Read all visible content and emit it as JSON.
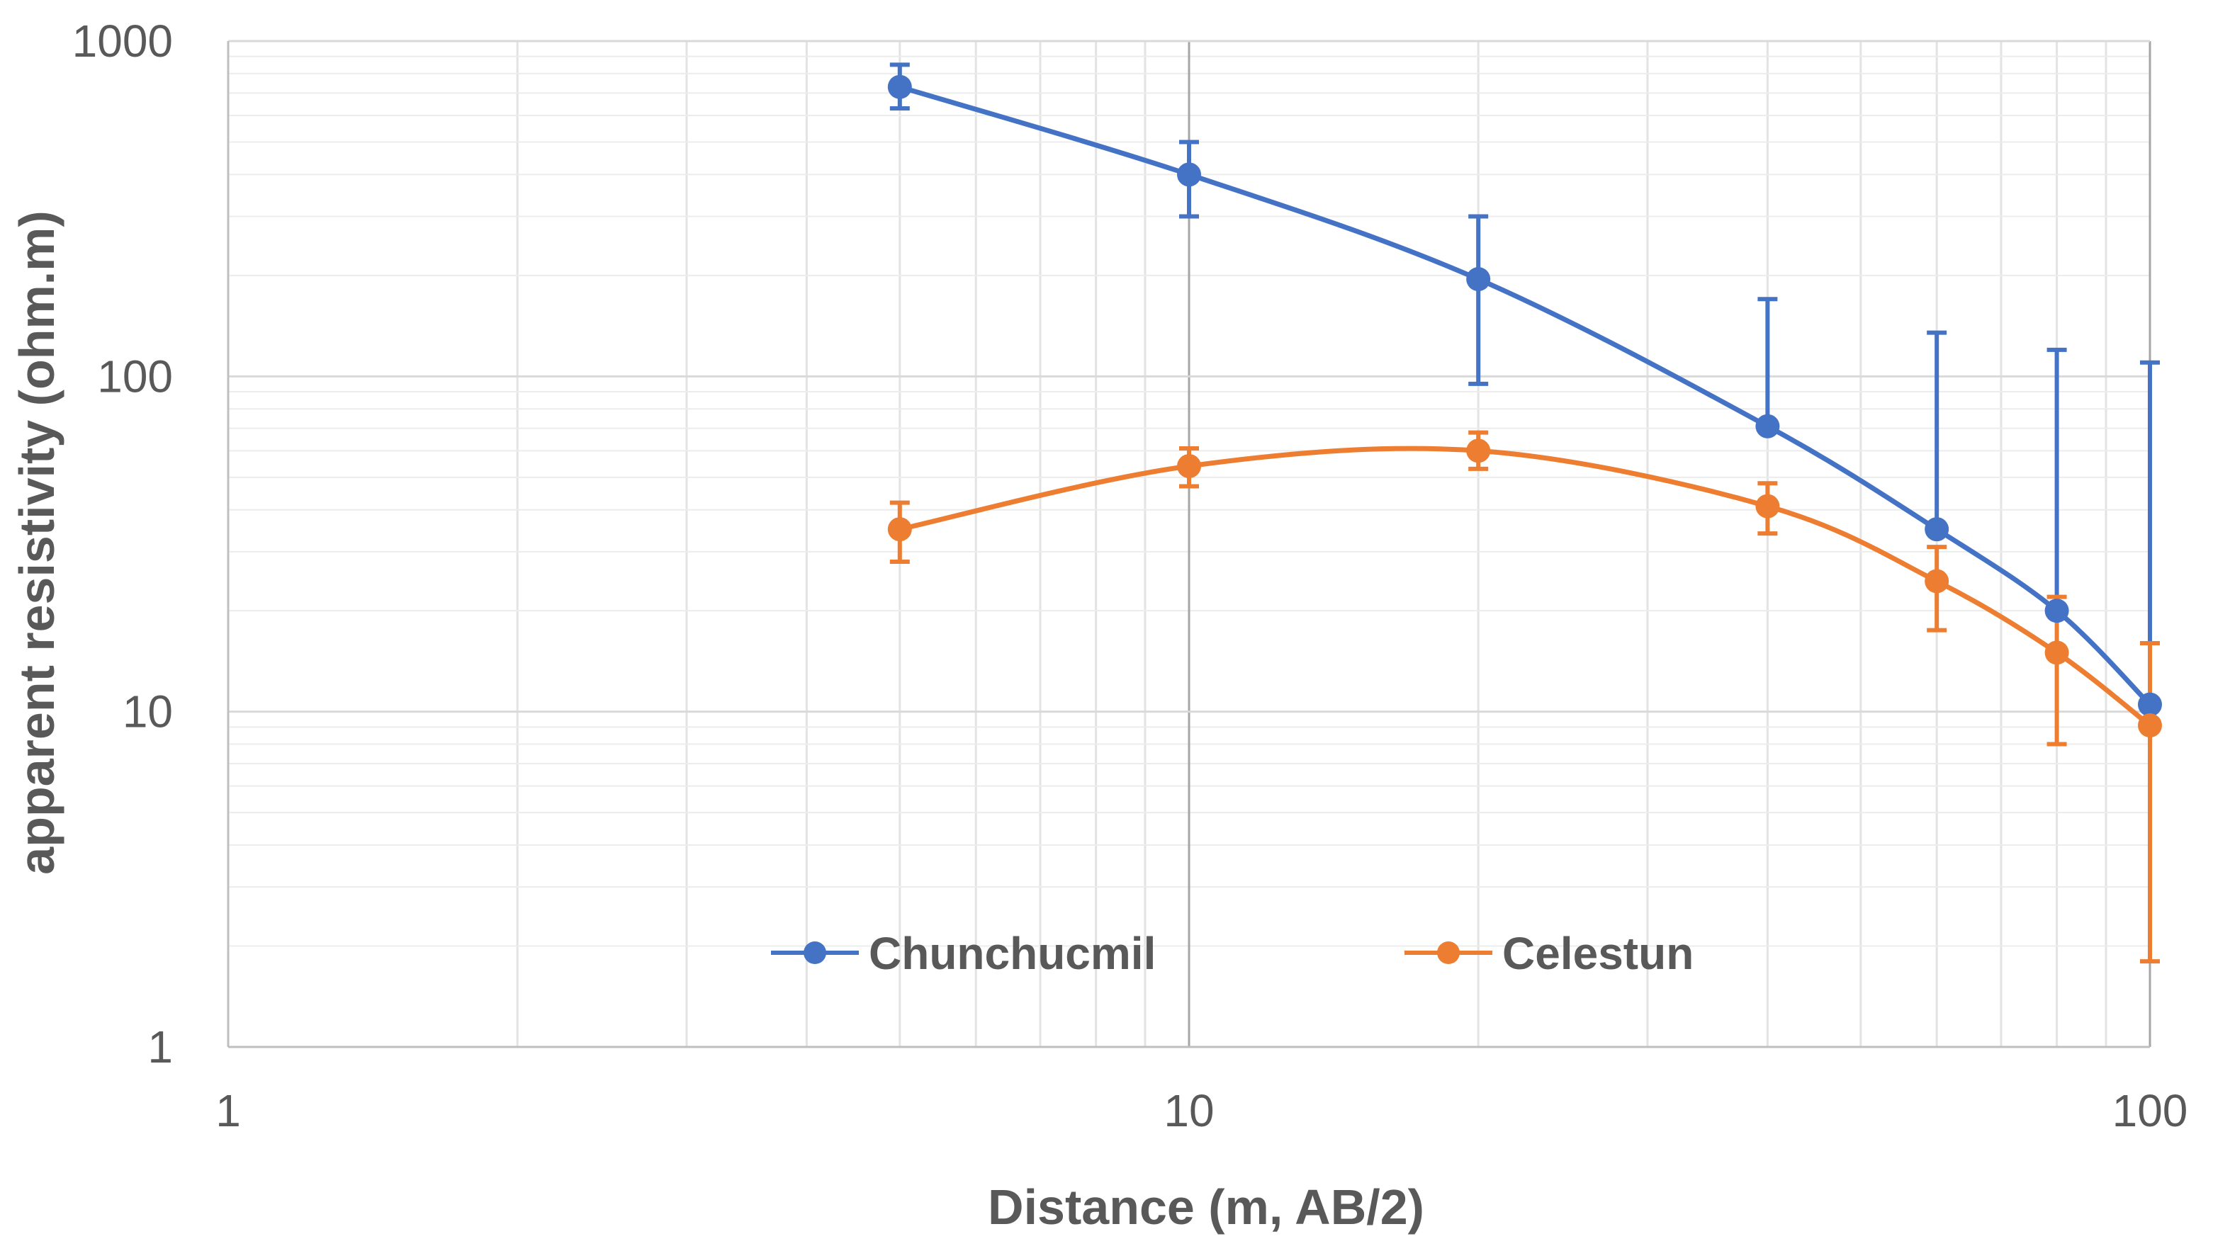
{
  "chart_data": {
    "type": "line",
    "xscale": "log",
    "yscale": "log",
    "xlim": [
      1,
      100
    ],
    "ylim": [
      1,
      1000
    ],
    "xlabel": "Distance (m, AB/2)",
    "ylabel": "apparent resistivity (ohm.m)",
    "x_ticks": [
      "1",
      "10",
      "100"
    ],
    "y_ticks": [
      "1",
      "10",
      "100",
      "1000"
    ],
    "grid": true,
    "legend_position": "bottom-center inside plot",
    "series": [
      {
        "name": "Chunchucmil",
        "color": "#4472C4",
        "x": [
          5,
          10,
          20,
          40,
          60,
          80,
          100
        ],
        "y": [
          730,
          400,
          195,
          71,
          35,
          20,
          10.5
        ],
        "error_upper": [
          850,
          500,
          300,
          170,
          135,
          120,
          110
        ],
        "error_lower": [
          630,
          300,
          95,
          71,
          35,
          20,
          10.5
        ]
      },
      {
        "name": "Celestun",
        "color": "#ED7D31",
        "x": [
          5,
          10,
          20,
          40,
          60,
          80,
          100
        ],
        "y": [
          35,
          54,
          60,
          41,
          24.5,
          15,
          9.1
        ],
        "error_upper": [
          42,
          61,
          68,
          48,
          31,
          22,
          16
        ],
        "error_lower": [
          28,
          47,
          53,
          34,
          17.5,
          8,
          1.8
        ]
      }
    ]
  }
}
